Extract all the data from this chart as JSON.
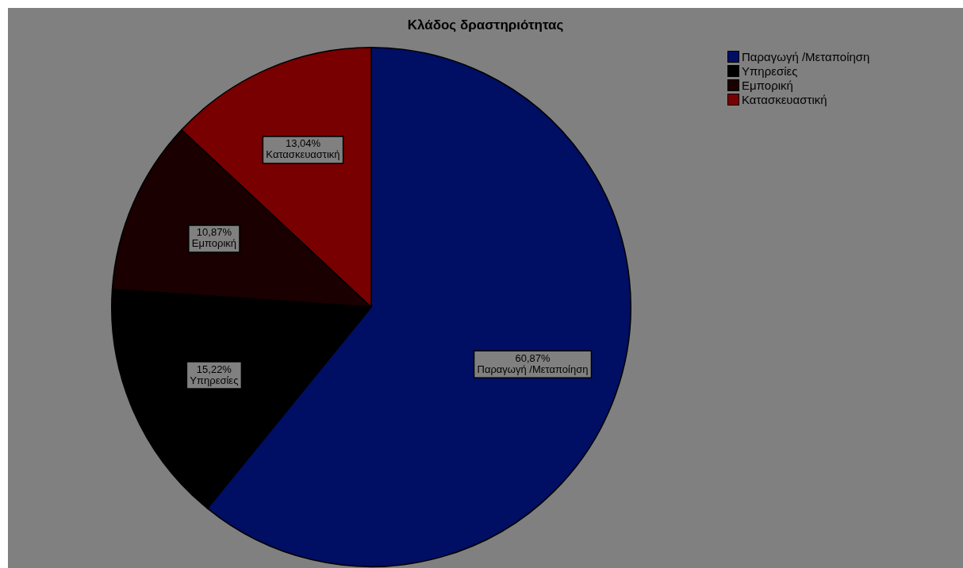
{
  "chart_data": {
    "type": "pie",
    "title": "Κλάδος δραστηριότητας",
    "categories": [
      "Παραγωγή /Μεταποίηση",
      "Υπηρεσίες",
      "Εμπορική",
      "Κατασκευαστική"
    ],
    "values": [
      60.87,
      15.22,
      10.87,
      13.04
    ],
    "value_labels": [
      "60,87%",
      "15,22%",
      "10,87%",
      "13,04%"
    ],
    "colors": [
      "#000f63",
      "#000000",
      "#1a0000",
      "#780000"
    ],
    "legend": "top right"
  }
}
